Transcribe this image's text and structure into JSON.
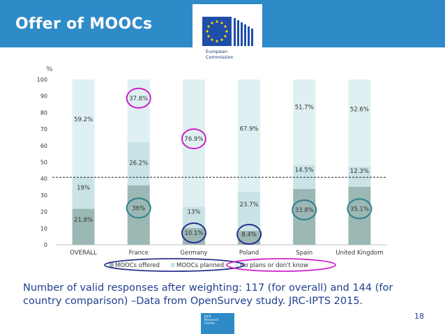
{
  "slide": {
    "title": "Offer of MOOCs",
    "page_number": "18",
    "footnote": "Number of valid responses after weighting: 117 (for overall) and  144 (for country comparison) –Data from OpenSurvey study. JRC-IPTS 2015.",
    "ec_logo": {
      "line1": "European",
      "line2": "Commission"
    },
    "jrc_logo": {
      "line1": "Joint",
      "line2": "Research",
      "line3": "Centre"
    }
  },
  "colors": {
    "header": "#2e8bc7",
    "series_offered": "#9bb8b4",
    "series_planned": "#c9e3e6",
    "series_noplans": "#dff0f2",
    "circle_navy": "#2a2f8c",
    "circle_magenta": "#d020c8",
    "circle_teal": "#2f7f8f",
    "text_blue": "#1f3f8f"
  },
  "chart_data": {
    "type": "bar",
    "stacked": true,
    "ylabel": "%",
    "ylim": [
      0,
      100
    ],
    "yticks": [
      "0",
      "10",
      "20",
      "30",
      "40",
      "50",
      "60",
      "70",
      "80",
      "90",
      "100"
    ],
    "categories": [
      "OVERALL",
      "France",
      "Germany",
      "Poland",
      "Spain",
      "United Kingdom"
    ],
    "series": [
      {
        "name": "MOOCs offered",
        "values": [
          21.8,
          36,
          10.1,
          8.4,
          33.8,
          35.1
        ],
        "labels": [
          "21.8%",
          "36%",
          "10.1%",
          "8.4%",
          "33.8%",
          "35.1%"
        ]
      },
      {
        "name": "MOOCs planned",
        "values": [
          19,
          26.2,
          13,
          23.7,
          14.5,
          12.3
        ],
        "labels": [
          "19%",
          "26.2%",
          "13%",
          "23.7%",
          "14.5%",
          "12.3%"
        ]
      },
      {
        "name": "No plans or don't know",
        "values": [
          59.2,
          37.8,
          76.9,
          67.9,
          51.7,
          52.6
        ],
        "labels": [
          "59.2%",
          "37.8%",
          "76.9%",
          "67.9%",
          "51.7%",
          "52.6%"
        ]
      }
    ],
    "reference_line": 40.8,
    "annotations": [
      {
        "category": "France",
        "series": "MOOCs offered",
        "shape": "circle",
        "color": "teal"
      },
      {
        "category": "France",
        "series": "No plans or don't know",
        "shape": "circle",
        "color": "magenta"
      },
      {
        "category": "Germany",
        "series": "MOOCs offered",
        "shape": "circle",
        "color": "navy"
      },
      {
        "category": "Germany",
        "series": "No plans or don't know",
        "shape": "circle",
        "color": "magenta"
      },
      {
        "category": "Poland",
        "series": "MOOCs offered",
        "shape": "circle",
        "color": "navy"
      },
      {
        "category": "Spain",
        "series": "MOOCs offered",
        "shape": "circle",
        "color": "teal"
      },
      {
        "category": "United Kingdom",
        "series": "MOOCs offered",
        "shape": "circle",
        "color": "teal"
      },
      {
        "category": "legend",
        "series": "No plans or don't know",
        "shape": "ellipse",
        "color": "magenta"
      }
    ],
    "legend_position": "bottom"
  }
}
